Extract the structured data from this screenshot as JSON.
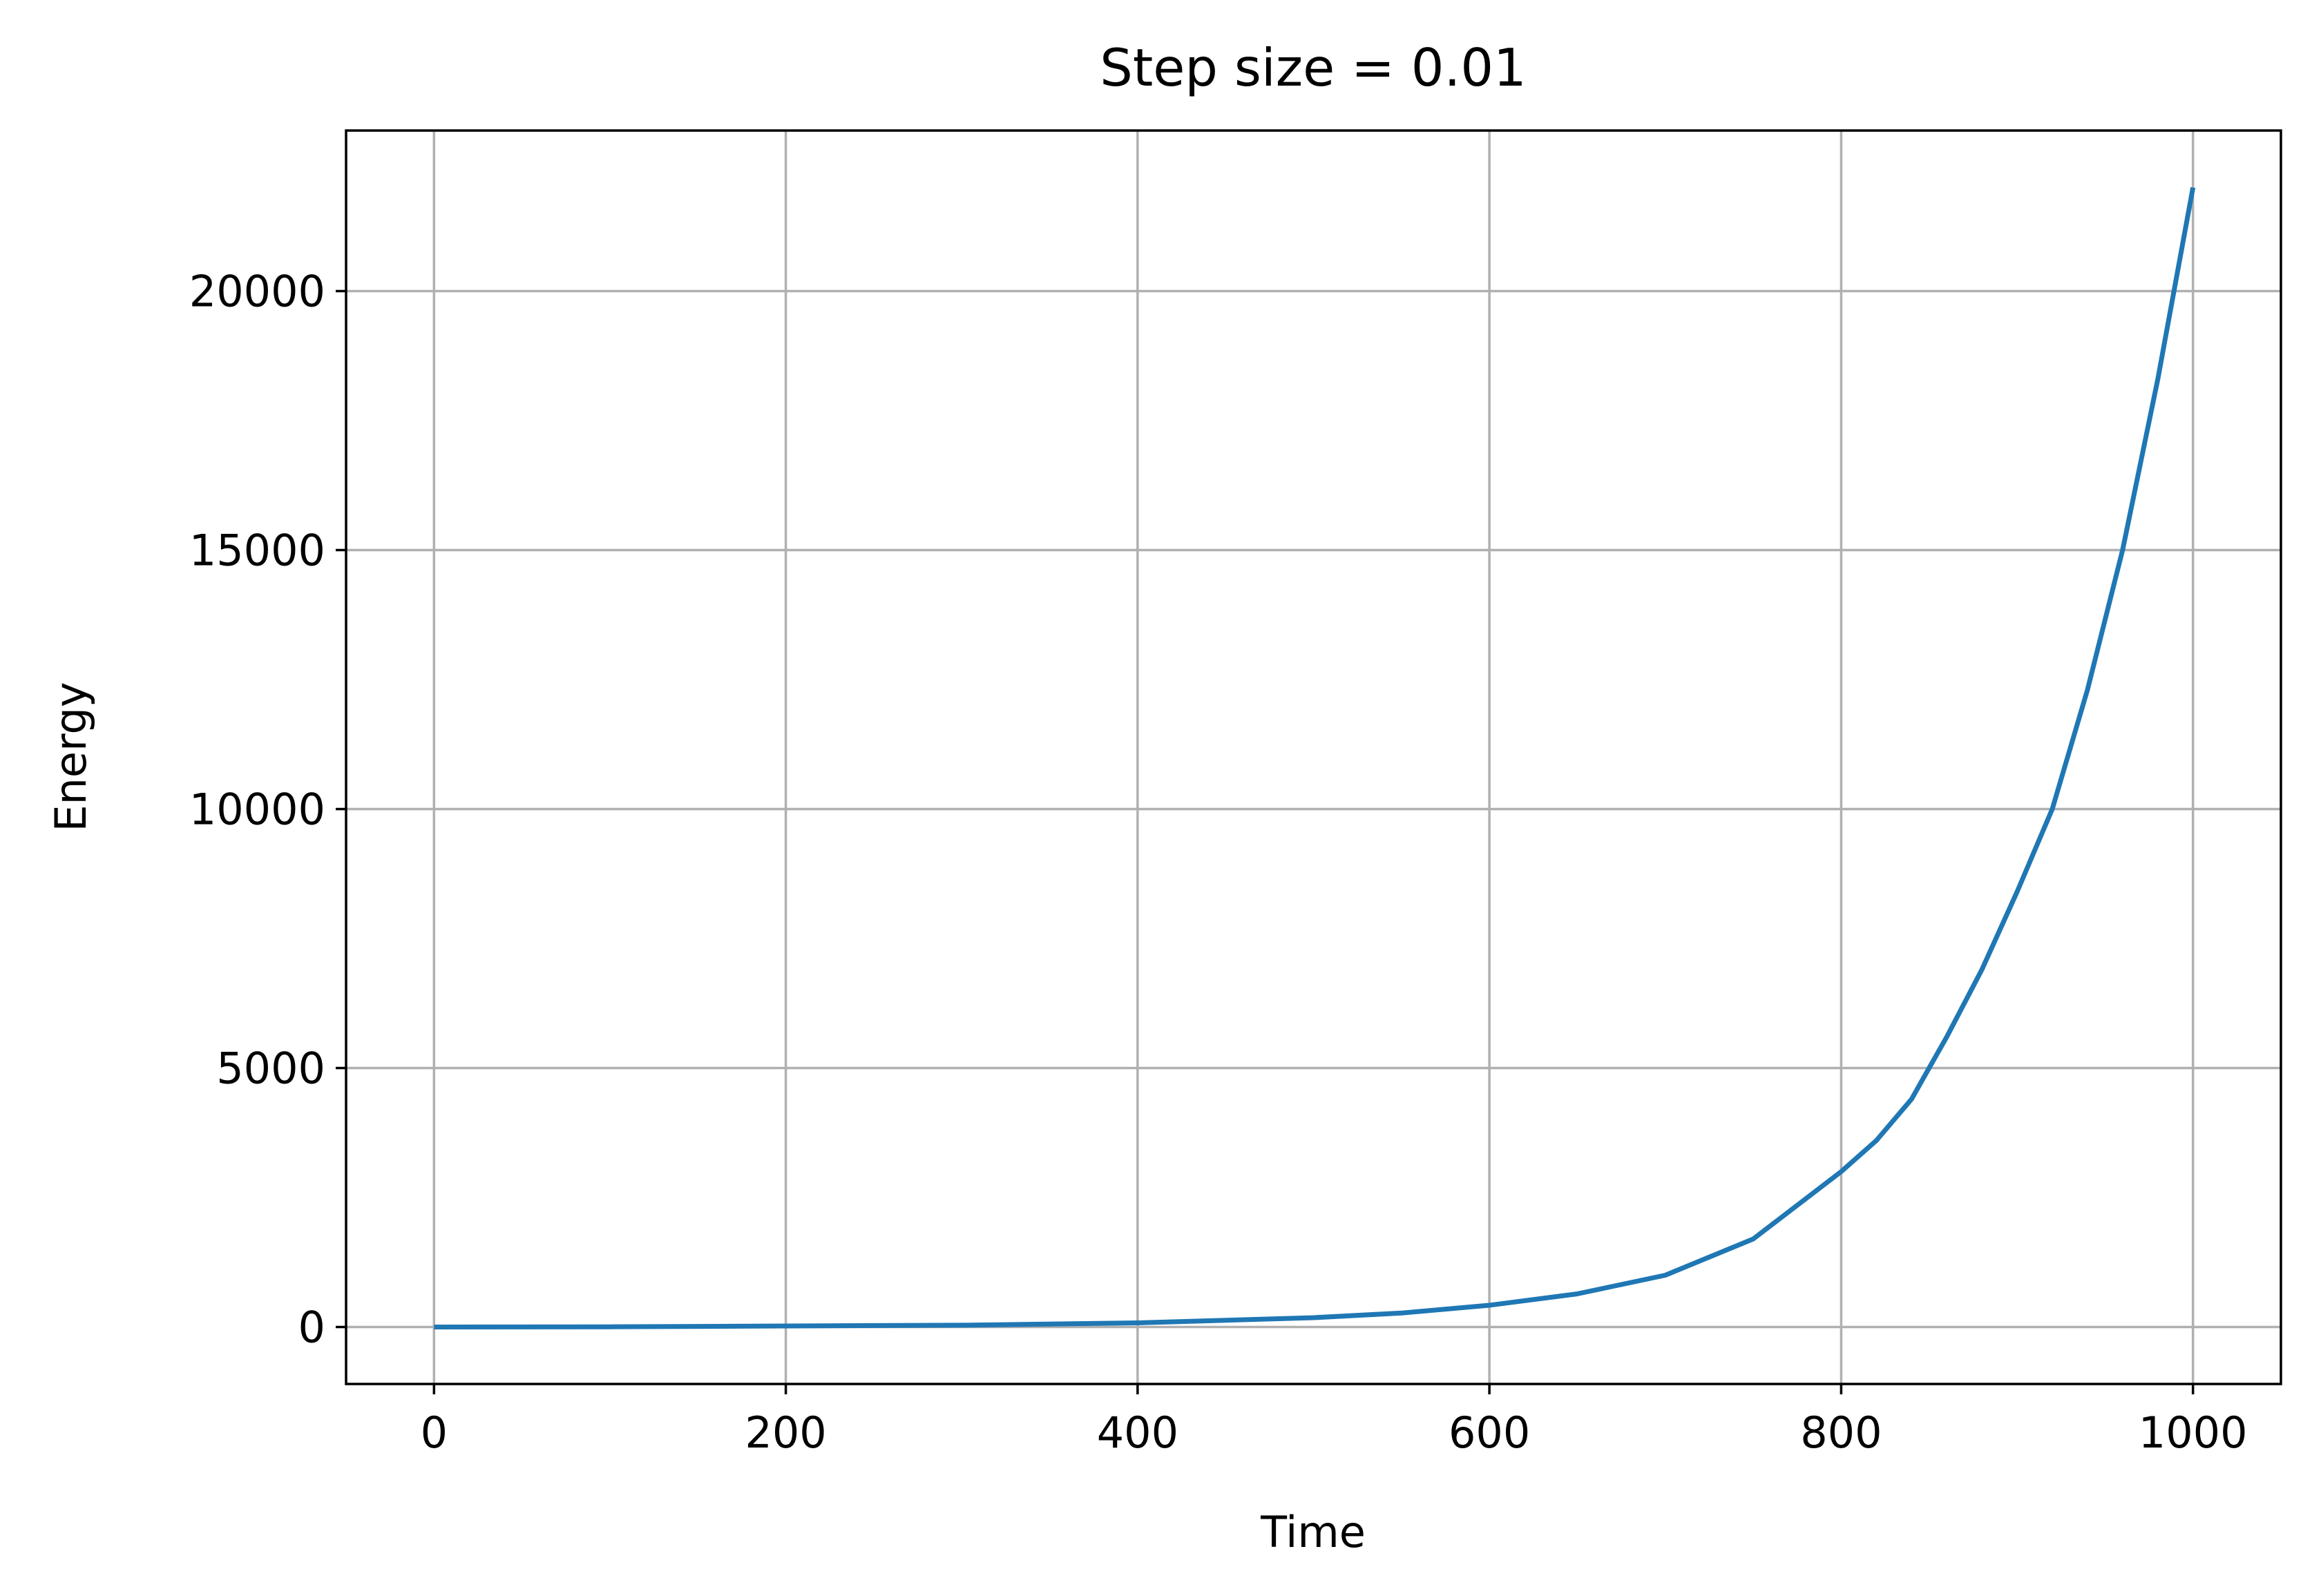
{
  "chart_data": {
    "type": "line",
    "title": "Step size = 0.01",
    "xlabel": "Time",
    "ylabel": "Energy",
    "xlim": [
      -50,
      1050
    ],
    "ylim": [
      -1100,
      23100
    ],
    "xticks": [
      0,
      200,
      400,
      600,
      800,
      1000
    ],
    "yticks": [
      0,
      5000,
      10000,
      15000,
      20000
    ],
    "xtick_labels": [
      "0",
      "200",
      "400",
      "600",
      "800",
      "1000"
    ],
    "ytick_labels": [
      "0",
      "5000",
      "10000",
      "15000",
      "20000"
    ],
    "grid": true,
    "series": [
      {
        "color": "#1f77b4",
        "x": [
          0,
          100,
          200,
          300,
          400,
          500,
          550,
          600,
          650,
          700,
          750,
          800,
          820,
          840,
          850,
          860,
          880,
          900,
          920,
          940,
          960,
          980,
          1000
        ],
        "y": [
          0,
          4,
          20,
          35,
          80,
          180,
          270,
          420,
          640,
          1000,
          1700,
          3000,
          3600,
          4400,
          5000,
          5600,
          6900,
          8400,
          10000,
          12300,
          15000,
          18300,
          22000
        ]
      }
    ]
  },
  "colors": {
    "series": "#1f77b4",
    "grid": "#b0b0b0",
    "axes": "#000000",
    "background": "#ffffff"
  }
}
